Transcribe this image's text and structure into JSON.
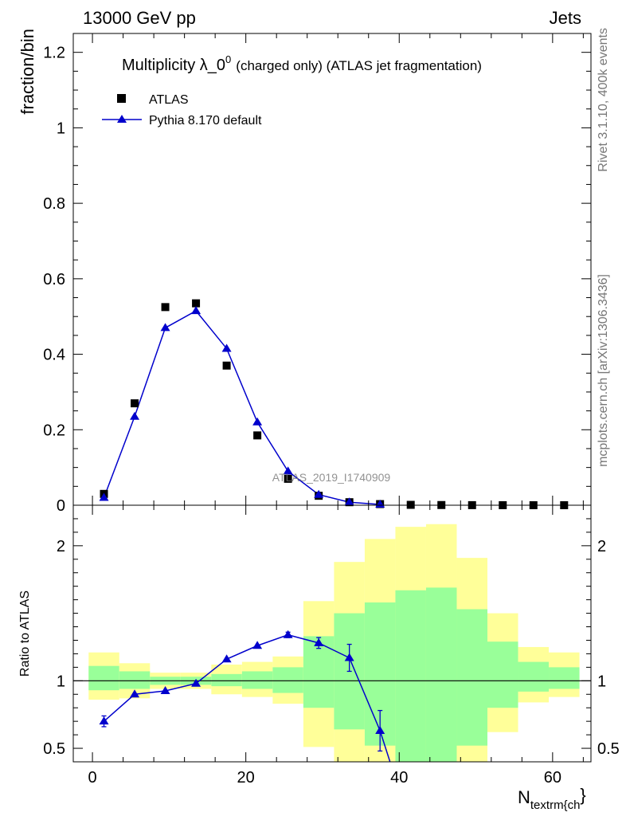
{
  "header": {
    "left": "13000 GeV pp",
    "right": "Jets"
  },
  "title": {
    "main": "Multiplicity λ_0",
    "superscript": "0",
    "detail": "(charged only) (ATLAS jet fragmentation)"
  },
  "legend": {
    "data_label": "ATLAS",
    "mc_label": "Pythia 8.170 default"
  },
  "side_text": {
    "rivet": "Rivet 3.1.10,  400k events",
    "mcplots": "mcplots.cern.ch [arXiv:1306.3436]"
  },
  "watermark": "ATLAS_2019_I1740909",
  "colors": {
    "mc": "#0000cc",
    "data": "#000000",
    "band_inner": "#99ff99",
    "band_outer": "#ffff99"
  },
  "chart_data": [
    {
      "id": "main",
      "type": "scatter",
      "ylabel": "fraction/bin",
      "xlim": [
        -2.5,
        65
      ],
      "ylim": [
        0,
        1.25
      ],
      "yticks": [
        0,
        0.2,
        0.4,
        0.6,
        0.8,
        1,
        1.2
      ],
      "ytick_labels": [
        "0",
        "0.2",
        "0.4",
        "0.6",
        "0.8",
        "1",
        "1.2"
      ],
      "series": [
        {
          "name": "ATLAS",
          "style": "markers-square",
          "x": [
            1.5,
            5.5,
            9.5,
            13.5,
            17.5,
            21.5,
            25.5,
            29.5,
            33.5,
            37.5,
            41.5,
            45.5,
            49.5,
            53.5,
            57.5,
            61.5
          ],
          "values": [
            0.03,
            0.27,
            0.525,
            0.535,
            0.37,
            0.185,
            0.07,
            0.025,
            0.008,
            0.003,
            0.001,
            0.0005,
            0.0002,
            0.0001,
            0.0,
            0.0
          ]
        },
        {
          "name": "Pythia 8.170 default",
          "style": "line-triangle",
          "x": [
            1.5,
            5.5,
            9.5,
            13.5,
            17.5,
            21.5,
            25.5,
            29.5,
            33.5,
            37.5
          ],
          "values": [
            0.02,
            0.235,
            0.47,
            0.515,
            0.415,
            0.22,
            0.09,
            0.028,
            0.008,
            0.002
          ]
        }
      ]
    },
    {
      "id": "ratio",
      "type": "line",
      "ylabel": "Ratio to ATLAS",
      "xlabel": "N_textrm{ch}",
      "xlabel_main": "N",
      "xlabel_sub": "textrm{ch",
      "xlabel_tail": "}",
      "xlim": [
        -2.5,
        65
      ],
      "ylim": [
        0.4,
        2.3
      ],
      "xticks": [
        0,
        20,
        40,
        60
      ],
      "xtick_labels": [
        "0",
        "20",
        "40",
        "60"
      ],
      "yticks": [
        0.5,
        1,
        2
      ],
      "ytick_labels": [
        "0.5",
        "1",
        "2"
      ],
      "reference_line": 1,
      "bins": [
        {
          "lo": -0.5,
          "hi": 3.5,
          "outer": [
            0.86,
            1.21
          ],
          "inner": [
            0.93,
            1.11
          ]
        },
        {
          "lo": 3.5,
          "hi": 7.5,
          "outer": [
            0.87,
            1.13
          ],
          "inner": [
            0.94,
            1.07
          ]
        },
        {
          "lo": 7.5,
          "hi": 11.5,
          "outer": [
            0.94,
            1.06
          ],
          "inner": [
            0.97,
            1.03
          ]
        },
        {
          "lo": 11.5,
          "hi": 15.5,
          "outer": [
            0.94,
            1.06
          ],
          "inner": [
            0.97,
            1.03
          ]
        },
        {
          "lo": 15.5,
          "hi": 19.5,
          "outer": [
            0.9,
            1.12
          ],
          "inner": [
            0.96,
            1.05
          ]
        },
        {
          "lo": 19.5,
          "hi": 23.5,
          "outer": [
            0.88,
            1.14
          ],
          "inner": [
            0.94,
            1.07
          ]
        },
        {
          "lo": 23.5,
          "hi": 27.5,
          "outer": [
            0.83,
            1.18
          ],
          "inner": [
            0.91,
            1.1
          ]
        },
        {
          "lo": 27.5,
          "hi": 31.5,
          "outer": [
            0.51,
            1.59
          ],
          "inner": [
            0.8,
            1.33
          ]
        },
        {
          "lo": 31.5,
          "hi": 35.5,
          "outer": [
            0.4,
            1.88
          ],
          "inner": [
            0.64,
            1.5
          ]
        },
        {
          "lo": 35.5,
          "hi": 39.5,
          "outer": [
            0.4,
            2.05
          ],
          "inner": [
            0.52,
            1.58
          ]
        },
        {
          "lo": 39.5,
          "hi": 43.5,
          "outer": [
            0.4,
            2.14
          ],
          "inner": [
            0.4,
            1.67
          ]
        },
        {
          "lo": 43.5,
          "hi": 47.5,
          "outer": [
            0.4,
            2.16
          ],
          "inner": [
            0.4,
            1.69
          ]
        },
        {
          "lo": 47.5,
          "hi": 51.5,
          "outer": [
            0.4,
            1.91
          ],
          "inner": [
            0.52,
            1.53
          ]
        },
        {
          "lo": 51.5,
          "hi": 55.5,
          "outer": [
            0.62,
            1.5
          ],
          "inner": [
            0.8,
            1.29
          ]
        },
        {
          "lo": 55.5,
          "hi": 59.5,
          "outer": [
            0.84,
            1.25
          ],
          "inner": [
            0.92,
            1.14
          ]
        },
        {
          "lo": 59.5,
          "hi": 63.5,
          "outer": [
            0.88,
            1.21
          ],
          "inner": [
            0.94,
            1.1
          ]
        }
      ],
      "series": [
        {
          "name": "Pythia 8.170 default",
          "x": [
            1.5,
            5.5,
            9.5,
            13.5,
            17.5,
            21.5,
            25.5,
            29.5,
            33.5,
            37.5,
            38.8
          ],
          "values": [
            0.7,
            0.9,
            0.925,
            0.98,
            1.16,
            1.26,
            1.34,
            1.28,
            1.17,
            0.63,
            0.4
          ],
          "err": [
            0.04,
            0.01,
            0.01,
            0.01,
            0.01,
            0.01,
            0.02,
            0.04,
            0.1,
            0.15,
            0
          ],
          "markers": [
            true,
            true,
            true,
            true,
            true,
            true,
            true,
            true,
            true,
            true,
            false
          ]
        }
      ]
    }
  ]
}
